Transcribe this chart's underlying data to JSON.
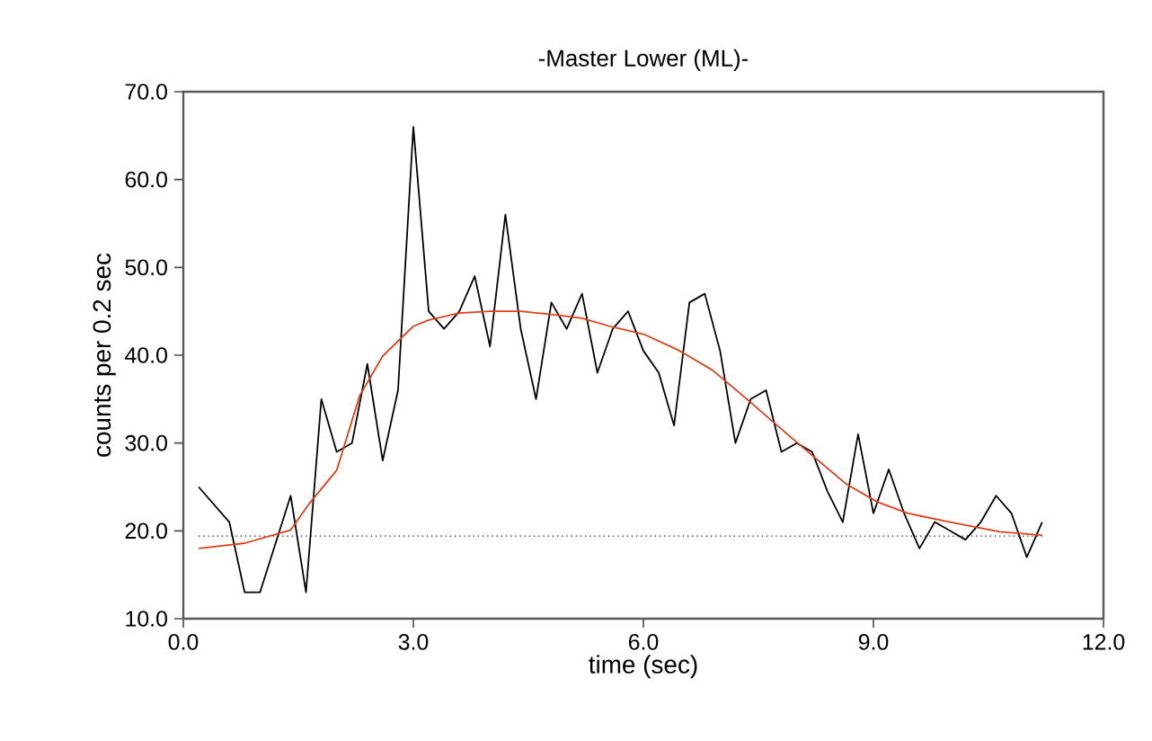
{
  "chart_data": {
    "type": "line",
    "title": "-Master Lower (ML)-",
    "xlabel": "time (sec)",
    "ylabel": "counts per 0.2 sec",
    "xlim": [
      0,
      12
    ],
    "ylim": [
      10,
      70
    ],
    "xticks": [
      {
        "value": 0,
        "label": "0.0"
      },
      {
        "value": 3,
        "label": "3.0"
      },
      {
        "value": 6,
        "label": "6.0"
      },
      {
        "value": 9,
        "label": "9.0"
      },
      {
        "value": 12,
        "label": "12.0"
      }
    ],
    "yticks": [
      {
        "value": 10,
        "label": "10.0"
      },
      {
        "value": 20,
        "label": "20.0"
      },
      {
        "value": 30,
        "label": "30.0"
      },
      {
        "value": 40,
        "label": "40.0"
      },
      {
        "value": 50,
        "label": "50.0"
      },
      {
        "value": 60,
        "label": "60.0"
      },
      {
        "value": 70,
        "label": "70.0"
      }
    ],
    "series": [
      {
        "color": "#000000",
        "x": [
          0.2,
          0.6,
          0.8,
          1.0,
          1.4,
          1.6,
          1.8,
          2.0,
          2.2,
          2.4,
          2.6,
          2.8,
          3.0,
          3.2,
          3.4,
          3.6,
          3.8,
          4.0,
          4.2,
          4.4,
          4.6,
          4.8,
          5.0,
          5.2,
          5.4,
          5.6,
          5.8,
          6.0,
          6.2,
          6.4,
          6.6,
          6.8,
          7.0,
          7.2,
          7.4,
          7.6,
          7.8,
          8.0,
          8.2,
          8.4,
          8.6,
          8.8,
          9.0,
          9.2,
          9.4,
          9.6,
          9.8,
          10.0,
          10.2,
          10.4,
          10.6,
          10.8,
          11.0,
          11.2
        ],
        "values": [
          25,
          21,
          13,
          13,
          24,
          13,
          35,
          29,
          30,
          39,
          28,
          36,
          66,
          45,
          43,
          45,
          49,
          41,
          56,
          43,
          35,
          46,
          43,
          47,
          38,
          43,
          45,
          40.5,
          38,
          32,
          46,
          47,
          40.5,
          30,
          35,
          36,
          29,
          30,
          29,
          24.5,
          21,
          31,
          22,
          27,
          22,
          18,
          21,
          20,
          19,
          21,
          24,
          22,
          17,
          21
        ]
      },
      {
        "color": "#e0401a",
        "x": [
          0.2,
          0.8,
          1.4,
          1.65,
          2.0,
          2.3,
          2.6,
          3.0,
          3.2,
          3.6,
          4.0,
          4.4,
          4.85,
          5.2,
          5.6,
          6.0,
          6.45,
          6.9,
          7.35,
          7.85,
          8.2,
          8.65,
          9.05,
          9.45,
          10.0,
          10.65,
          11.2
        ],
        "values": [
          18,
          18.6,
          20.1,
          23.2,
          26.9,
          35.4,
          39.9,
          43.3,
          44,
          44.8,
          45,
          45,
          44.6,
          44.2,
          43.2,
          42.4,
          40.6,
          38.3,
          35,
          31.2,
          28.6,
          25.3,
          23.3,
          22,
          21,
          19.9,
          19.5
        ]
      }
    ],
    "ref_lines": [
      {
        "axis": "y",
        "value": 19.4,
        "color": "#000000",
        "line_style": "dotted"
      }
    ]
  }
}
